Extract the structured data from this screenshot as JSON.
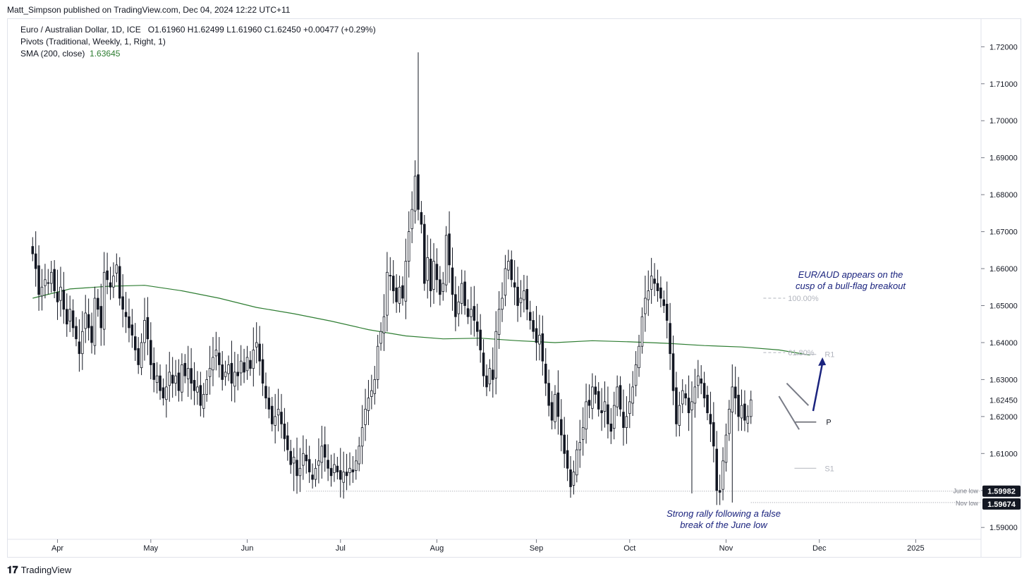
{
  "header": {
    "published": "Matt_Simpson published on TradingView.com, Dec 04, 2024 12:22 UTC+11"
  },
  "legend": {
    "symbol": "Euro / Australian Dollar, 1D, ICE",
    "ohlc": "O1.61960  H1.62499  L1.61960  C1.62450  +0.00477 (+0.29%)",
    "pivots": "Pivots (Traditional, Weekly, 1, Right, 1)",
    "sma_label": "SMA (200, close)",
    "sma_value": "1.63645"
  },
  "annotations": {
    "bull_flag_line1": "EUR/AUD appears on the",
    "bull_flag_line2": "cusp of a bull-flag breakout",
    "rally_line1": "Strong rally following a false",
    "rally_line2": "break of the June low",
    "fib_100": "100.00%",
    "fib_618": "61.80%",
    "pivot_r1": "R1",
    "pivot_p": "P",
    "pivot_s1": "S1",
    "june_low_label": "June low",
    "nov_low_label": "Nov low"
  },
  "price_badges": {
    "last": "1.62450",
    "june_low": "1.59982",
    "nov_low": "1.59674"
  },
  "footer": {
    "brand": "TradingView"
  },
  "colors": {
    "up": "#ffffff",
    "down": "#131722",
    "sma": "#2e7d32",
    "arrow": "#1a237e",
    "note": "#1a237e",
    "grid": "#f0f3fa"
  },
  "chart_data": {
    "type": "candlestick",
    "title": "Euro / Australian Dollar, 1D, ICE",
    "y_ticks": [
      1.59,
      1.6,
      1.61,
      1.62,
      1.63,
      1.64,
      1.65,
      1.66,
      1.67,
      1.68,
      1.69,
      1.7,
      1.71,
      1.72
    ],
    "y_tick_labels": [
      "1.59000",
      "1.60000",
      "1.61000",
      "1.62000",
      "1.63000",
      "1.64000",
      "1.65000",
      "1.66000",
      "1.67000",
      "1.68000",
      "1.69000",
      "1.70000",
      "1.71000",
      "1.72000"
    ],
    "ylim": [
      1.5868,
      1.7275
    ],
    "x_labels": [
      "Apr",
      "May",
      "Jun",
      "Jul",
      "Aug",
      "Sep",
      "Oct",
      "Nov",
      "Dec",
      "2025"
    ],
    "x_label_days": [
      8,
      38,
      69,
      99,
      130,
      162,
      192,
      223,
      253,
      284
    ],
    "xlim": [
      -8,
      305
    ],
    "closes": [
      1.664,
      1.66,
      1.653,
      1.655,
      1.657,
      1.656,
      1.659,
      1.654,
      1.651,
      1.655,
      1.649,
      1.645,
      1.649,
      1.644,
      1.641,
      1.637,
      1.643,
      1.648,
      1.644,
      1.64,
      1.652,
      1.649,
      1.644,
      1.659,
      1.657,
      1.655,
      1.658,
      1.661,
      1.652,
      1.649,
      1.647,
      1.644,
      1.642,
      1.638,
      1.634,
      1.64,
      1.646,
      1.641,
      1.634,
      1.63,
      1.631,
      1.627,
      1.625,
      1.628,
      1.632,
      1.629,
      1.631,
      1.627,
      1.634,
      1.631,
      1.633,
      1.629,
      1.627,
      1.628,
      1.623,
      1.626,
      1.63,
      1.633,
      1.636,
      1.638,
      1.634,
      1.63,
      1.632,
      1.634,
      1.629,
      1.632,
      1.631,
      1.635,
      1.632,
      1.636,
      1.633,
      1.638,
      1.64,
      1.635,
      1.629,
      1.625,
      1.622,
      1.618,
      1.62,
      1.622,
      1.618,
      1.614,
      1.611,
      1.607,
      1.609,
      1.604,
      1.606,
      1.61,
      1.608,
      1.605,
      1.603,
      1.606,
      1.608,
      1.612,
      1.609,
      1.606,
      1.604,
      1.607,
      1.605,
      1.603,
      1.605,
      1.604,
      1.606,
      1.605,
      1.608,
      1.612,
      1.617,
      1.622,
      1.625,
      1.627,
      1.63,
      1.639,
      1.643,
      1.647,
      1.659,
      1.658,
      1.654,
      1.651,
      1.655,
      1.652,
      1.662,
      1.67,
      1.676,
      1.685,
      1.676,
      1.672,
      1.656,
      1.663,
      1.654,
      1.662,
      1.657,
      1.653,
      1.656,
      1.669,
      1.661,
      1.653,
      1.647,
      1.651,
      1.656,
      1.65,
      1.647,
      1.649,
      1.646,
      1.643,
      1.638,
      1.631,
      1.628,
      1.633,
      1.63,
      1.643,
      1.649,
      1.652,
      1.66,
      1.662,
      1.657,
      1.655,
      1.65,
      1.652,
      1.654,
      1.649,
      1.646,
      1.643,
      1.64,
      1.642,
      1.635,
      1.629,
      1.623,
      1.619,
      1.626,
      1.62,
      1.615,
      1.61,
      1.606,
      1.601,
      1.605,
      1.611,
      1.613,
      1.617,
      1.624,
      1.623,
      1.628,
      1.626,
      1.622,
      1.621,
      1.624,
      1.618,
      1.616,
      1.623,
      1.628,
      1.622,
      1.617,
      1.62,
      1.624,
      1.628,
      1.634,
      1.639,
      1.647,
      1.652,
      1.654,
      1.658,
      1.656,
      1.654,
      1.652,
      1.65,
      1.646,
      1.637,
      1.627,
      1.618,
      1.623,
      1.627,
      1.625,
      1.621,
      1.624,
      1.628,
      1.631,
      1.629,
      1.625,
      1.621,
      1.618,
      1.612,
      1.6,
      1.5995,
      1.608,
      1.615,
      1.622,
      1.628,
      1.625,
      1.62,
      1.623,
      1.619,
      1.62,
      1.6245
    ],
    "pivot_levels": {
      "P": 1.6185,
      "R1": 1.6368,
      "S1": 1.606
    },
    "fib_levels": {
      "61.80%": 1.6373,
      "100.00%": 1.652
    },
    "june_low": 1.59982,
    "nov_low": 1.59674,
    "last_price": 1.6245,
    "sma_200": {
      "x": [
        0,
        12,
        24,
        36,
        48,
        60,
        72,
        84,
        96,
        108,
        120,
        132,
        144,
        156,
        168,
        180,
        192,
        204,
        216,
        228,
        240,
        250
      ],
      "values": [
        1.652,
        1.6545,
        1.6552,
        1.6555,
        1.654,
        1.652,
        1.6495,
        1.6478,
        1.6458,
        1.6435,
        1.6418,
        1.641,
        1.6412,
        1.6405,
        1.64,
        1.6405,
        1.6402,
        1.6398,
        1.6392,
        1.6388,
        1.638,
        1.6366
      ]
    }
  }
}
